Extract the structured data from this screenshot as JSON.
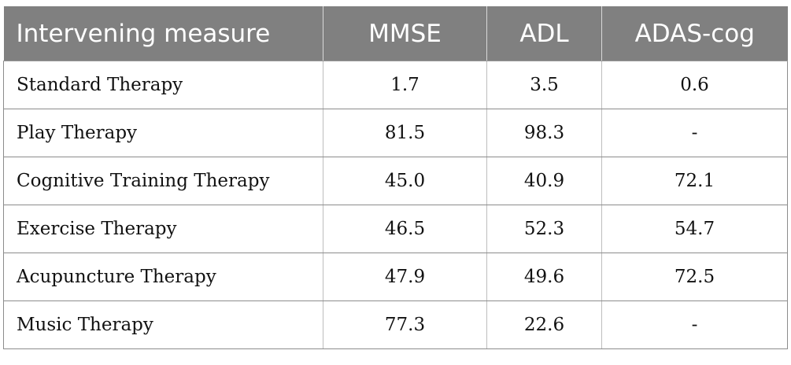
{
  "table": {
    "headers": [
      "Intervening measure",
      "MMSE",
      "ADL",
      "ADAS-cog"
    ],
    "rows": [
      [
        "Standard Therapy",
        "1.7",
        "3.5",
        "0.6"
      ],
      [
        "Play Therapy",
        "81.5",
        "98.3",
        "-"
      ],
      [
        "Cognitive Training Therapy",
        "45.0",
        "40.9",
        "72.1"
      ],
      [
        "Exercise Therapy",
        "46.5",
        "52.3",
        "54.7"
      ],
      [
        "Acupuncture Therapy",
        "47.9",
        "49.6",
        "72.5"
      ],
      [
        "Music Therapy",
        "77.3",
        "22.6",
        "-"
      ]
    ]
  },
  "colors": {
    "header_background": "#808080",
    "header_text": "#ffffff",
    "body_text": "#111111",
    "grid_line": "#8c8c8c"
  }
}
